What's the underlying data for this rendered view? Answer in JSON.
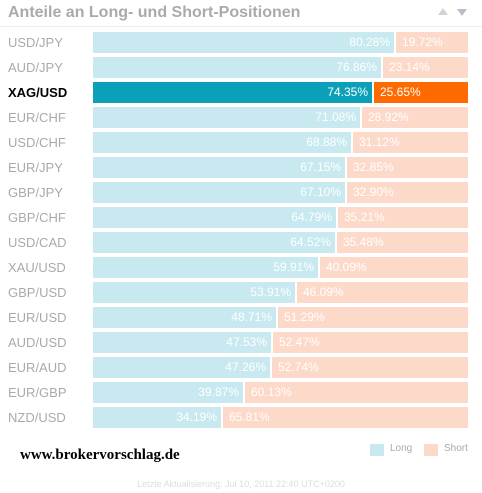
{
  "header": {
    "title": "Anteile an Long- und Short-Positionen"
  },
  "chart_data": {
    "type": "bar",
    "stacked": true,
    "orientation": "horizontal",
    "categories": [
      "USD/JPY",
      "AUD/JPY",
      "XAG/USD",
      "EUR/CHF",
      "USD/CHF",
      "EUR/JPY",
      "GBP/JPY",
      "GBP/CHF",
      "USD/CAD",
      "XAU/USD",
      "GBP/USD",
      "EUR/USD",
      "AUD/USD",
      "EUR/AUD",
      "EUR/GBP",
      "NZD/USD"
    ],
    "series": [
      {
        "name": "Long",
        "values": [
          80.28,
          76.86,
          74.35,
          71.08,
          68.88,
          67.15,
          67.1,
          64.79,
          64.52,
          59.91,
          53.91,
          48.71,
          47.53,
          47.26,
          39.87,
          34.19
        ]
      },
      {
        "name": "Short",
        "values": [
          19.72,
          23.14,
          25.65,
          28.92,
          31.12,
          32.85,
          32.9,
          35.21,
          35.48,
          40.09,
          46.09,
          51.29,
          52.47,
          52.74,
          60.13,
          65.81
        ]
      }
    ],
    "highlighted": "XAG/USD",
    "xlim": [
      0,
      100
    ],
    "legend_position": "bottom-right",
    "colors": {
      "long": "#c7e9ef",
      "short": "#fdd9c9",
      "long_active": "#0aa0b8",
      "short_active": "#ff6a00"
    }
  },
  "legend": {
    "long_label": "Long",
    "short_label": "Short"
  },
  "watermark": "www.brokervorschlag.de",
  "footer": {
    "updated": "Letzte Aktualisierung: Jul 10, 2011 22:40 UTC+0200"
  }
}
